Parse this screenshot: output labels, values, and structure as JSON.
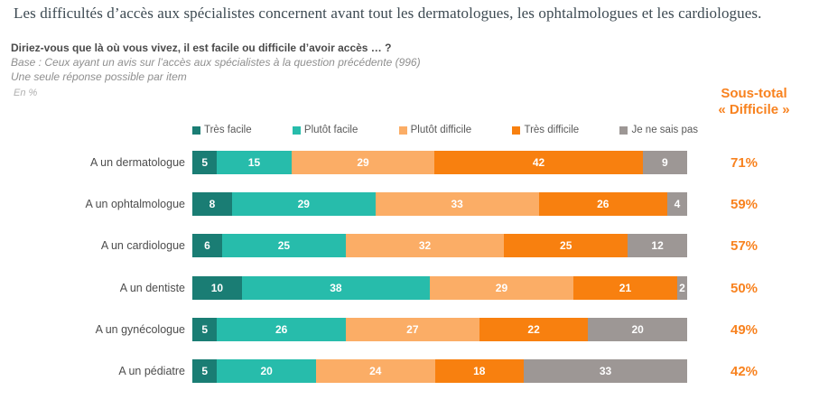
{
  "title": "Les difficultés d’accès aux spécialistes concernent avant tout les dermatologues, les ophtalmologues et les cardiologues.",
  "question": "Diriez-vous que là où vous vivez, il est facile ou difficile d’avoir accès … ?",
  "base_line1": "Base : Ceux ayant un avis sur l’accès aux spécialistes à la question précédente (996)",
  "base_line2": "Une seule réponse possible par item",
  "unit_note": "En %",
  "sous_total_header": {
    "line1": "Sous-total",
    "line2": "« Difficile »"
  },
  "colors": {
    "title_text": "#3d4a52",
    "question_text": "#4a4a4a",
    "base_text": "#8f8f8f",
    "accent_orange": "#f8821f",
    "tres_facile": "#1a7d74",
    "plutot_facile": "#27bcab",
    "plutot_difficile": "#fbad66",
    "tres_difficile": "#f8800f",
    "je_ne_sais_pas": "#9d9795"
  },
  "chart_data": {
    "type": "bar",
    "orientation": "horizontal",
    "stacked": true,
    "value_unit": "%",
    "xlim": [
      0,
      100
    ],
    "legend_position": "top",
    "categories": [
      "A un dermatologue",
      "A un ophtalmologue",
      "A un cardiologue",
      "A un dentiste",
      "A un gynécologue",
      "A un pédiatre"
    ],
    "series": [
      {
        "name": "Très facile",
        "color": "#1a7d74",
        "values": [
          5,
          8,
          6,
          10,
          5,
          5
        ]
      },
      {
        "name": "Plutôt facile",
        "color": "#27bcab",
        "values": [
          15,
          29,
          25,
          38,
          26,
          20
        ]
      },
      {
        "name": "Plutôt difficile",
        "color": "#fbad66",
        "values": [
          29,
          33,
          32,
          29,
          27,
          24
        ]
      },
      {
        "name": "Très difficile",
        "color": "#f8800f",
        "values": [
          42,
          26,
          25,
          21,
          22,
          18
        ]
      },
      {
        "name": "Je ne sais pas",
        "color": "#9d9795",
        "values": [
          9,
          4,
          12,
          2,
          20,
          33
        ]
      }
    ],
    "sous_total_difficile": [
      "71%",
      "59%",
      "57%",
      "50%",
      "49%",
      "42%"
    ]
  }
}
